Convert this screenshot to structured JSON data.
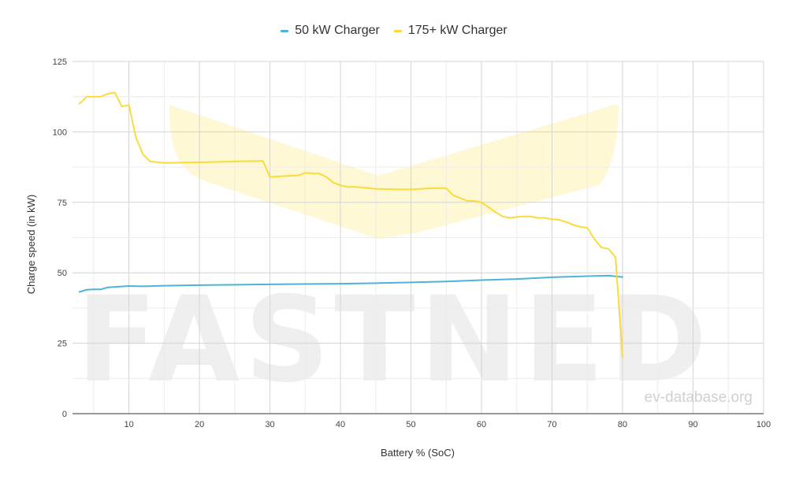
{
  "chart_data": {
    "type": "line",
    "xlabel": "Battery % (SoC)",
    "ylabel": "Charge speed (in kW)",
    "xlim": [
      2,
      100
    ],
    "ylim": [
      0,
      125
    ],
    "x_ticks": [
      10,
      20,
      30,
      40,
      50,
      60,
      70,
      80,
      90,
      100
    ],
    "y_ticks": [
      0,
      25,
      50,
      75,
      100,
      125
    ],
    "grid": "on (major and minor)",
    "legend": "top-center",
    "series": [
      {
        "name": "50 kW Charger",
        "color": "#4db3d8",
        "x": [
          3,
          4,
          5,
          6,
          7,
          8,
          10,
          12,
          15,
          20,
          30,
          40,
          45,
          50,
          55,
          60,
          65,
          70,
          75,
          78,
          80
        ],
        "y": [
          43.2,
          44.0,
          44.1,
          44.1,
          44.8,
          45.0,
          45.3,
          45.2,
          45.4,
          45.6,
          45.9,
          46.1,
          46.3,
          46.6,
          46.9,
          47.4,
          47.8,
          48.4,
          48.8,
          49.0,
          48.5
        ]
      },
      {
        "name": "175+ kW Charger",
        "color": "#f9dc3c",
        "x": [
          3,
          4,
          5,
          6,
          7,
          8,
          9,
          10,
          11,
          12,
          13,
          15,
          20,
          25,
          29,
          30,
          32,
          34,
          35,
          36,
          37,
          38,
          39,
          40,
          41,
          42,
          45,
          48,
          50,
          53,
          55,
          56,
          57,
          58,
          59,
          60,
          62,
          63,
          64,
          65,
          66,
          67,
          68,
          69,
          70,
          71,
          72,
          73,
          74,
          75,
          76,
          77,
          78,
          79,
          80
        ],
        "y": [
          110,
          112.5,
          112.5,
          112.5,
          113.5,
          114,
          109,
          109.5,
          98,
          92,
          89.5,
          89,
          89.2,
          89.5,
          89.7,
          84,
          84.3,
          84.5,
          85.5,
          85.2,
          85.2,
          84,
          82,
          81,
          80.5,
          80.5,
          79.8,
          79.6,
          79.6,
          80,
          80,
          77.5,
          76.5,
          75.5,
          75.5,
          75,
          71.5,
          70,
          69.5,
          69.8,
          70,
          70,
          69.5,
          69.5,
          69,
          68.8,
          68,
          67,
          66.3,
          66,
          62,
          59,
          58.5,
          55.5,
          20
        ]
      }
    ],
    "watermark": "FASTNED",
    "credit": "ev-database.org"
  }
}
